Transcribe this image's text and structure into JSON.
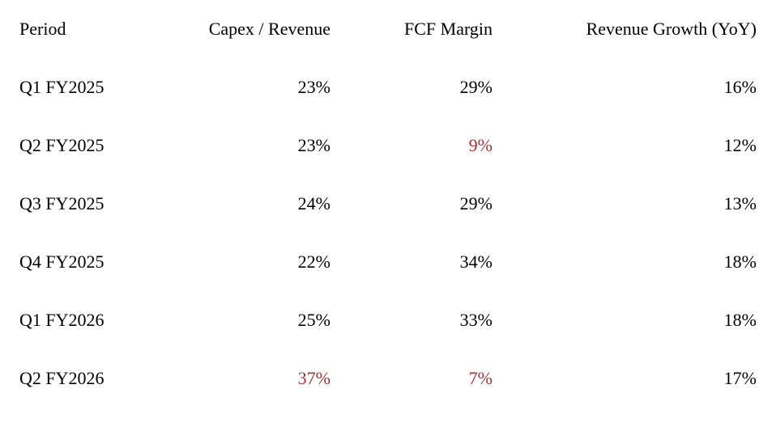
{
  "colors": {
    "background": "#ffffff",
    "text": "#000000",
    "highlight_red": "#a93134"
  },
  "table": {
    "columns": [
      {
        "label": "Period",
        "align": "left"
      },
      {
        "label": "Capex / Revenue",
        "align": "right"
      },
      {
        "label": "FCF Margin",
        "align": "right"
      },
      {
        "label": "Revenue Growth (YoY)",
        "align": "right"
      }
    ],
    "rows": [
      {
        "period": "Q1 FY2025",
        "capex_revenue": {
          "text": "23%",
          "highlight": false
        },
        "fcf_margin": {
          "text": "29%",
          "highlight": false
        },
        "revenue_growth_yoy": {
          "text": "16%",
          "highlight": false
        }
      },
      {
        "period": "Q2 FY2025",
        "capex_revenue": {
          "text": "23%",
          "highlight": false
        },
        "fcf_margin": {
          "text": "9%",
          "highlight": true
        },
        "revenue_growth_yoy": {
          "text": "12%",
          "highlight": false
        }
      },
      {
        "period": "Q3 FY2025",
        "capex_revenue": {
          "text": "24%",
          "highlight": false
        },
        "fcf_margin": {
          "text": "29%",
          "highlight": false
        },
        "revenue_growth_yoy": {
          "text": "13%",
          "highlight": false
        }
      },
      {
        "period": "Q4 FY2025",
        "capex_revenue": {
          "text": "22%",
          "highlight": false
        },
        "fcf_margin": {
          "text": "34%",
          "highlight": false
        },
        "revenue_growth_yoy": {
          "text": "18%",
          "highlight": false
        }
      },
      {
        "period": "Q1 FY2026",
        "capex_revenue": {
          "text": "25%",
          "highlight": false
        },
        "fcf_margin": {
          "text": "33%",
          "highlight": false
        },
        "revenue_growth_yoy": {
          "text": "18%",
          "highlight": false
        }
      },
      {
        "period": "Q2 FY2026",
        "capex_revenue": {
          "text": "37%",
          "highlight": true
        },
        "fcf_margin": {
          "text": "7%",
          "highlight": true
        },
        "revenue_growth_yoy": {
          "text": "17%",
          "highlight": false
        }
      }
    ]
  }
}
